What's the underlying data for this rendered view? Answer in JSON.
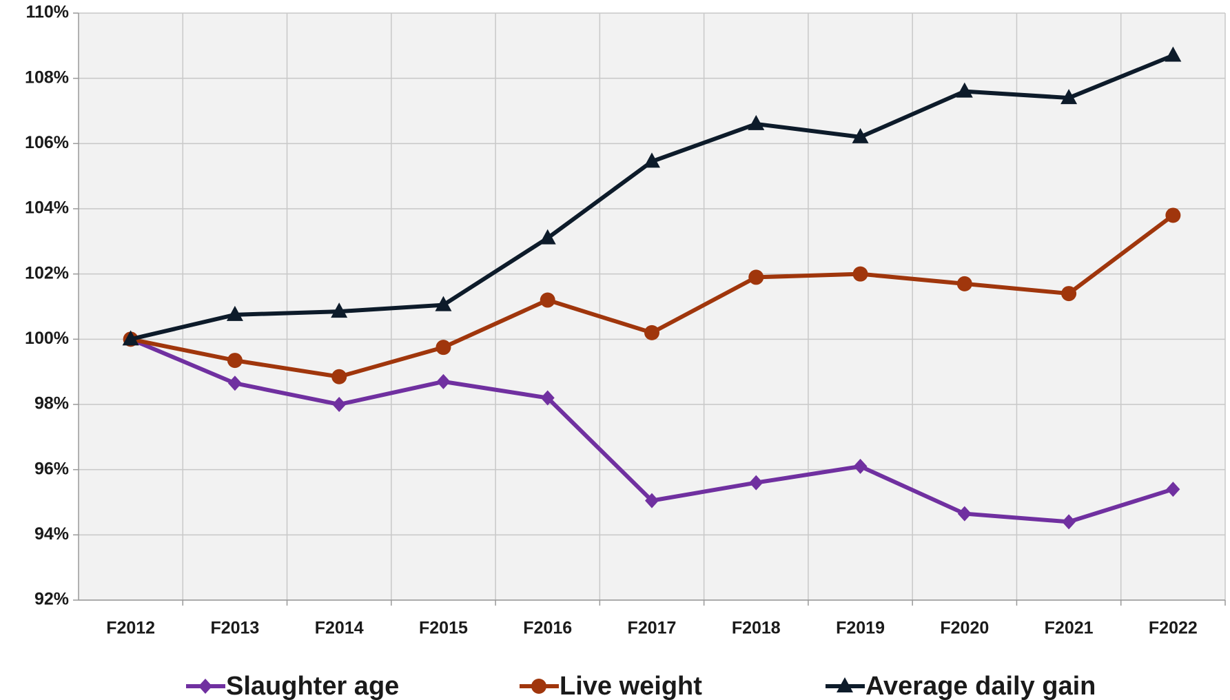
{
  "chart_data": {
    "type": "line",
    "categories": [
      "F2012",
      "F2013",
      "F2014",
      "F2015",
      "F2016",
      "F2017",
      "F2018",
      "F2019",
      "F2020",
      "F2021",
      "F2022"
    ],
    "series": [
      {
        "name": "Slaughter age",
        "color": "#7030a0",
        "marker": "diamond",
        "values": [
          100,
          98.65,
          98.0,
          98.7,
          98.2,
          95.05,
          95.6,
          96.1,
          94.65,
          94.4,
          95.4
        ]
      },
      {
        "name": "Live weight",
        "color": "#a0360c",
        "marker": "circle",
        "values": [
          100,
          99.35,
          98.85,
          99.75,
          101.2,
          100.2,
          101.9,
          102.0,
          101.7,
          101.4,
          103.8
        ]
      },
      {
        "name": "Average daily gain",
        "color": "#0d1b2a",
        "marker": "triangle",
        "values": [
          100,
          100.75,
          100.85,
          101.05,
          103.1,
          105.45,
          106.6,
          106.2,
          107.6,
          107.4,
          108.7
        ]
      }
    ],
    "ylim": [
      92,
      110
    ],
    "yticks": [
      {
        "value": 92,
        "label": "92%"
      },
      {
        "value": 94,
        "label": "94%"
      },
      {
        "value": 96,
        "label": "96%"
      },
      {
        "value": 98,
        "label": "98%"
      },
      {
        "value": 100,
        "label": "100%"
      },
      {
        "value": 102,
        "label": "102%"
      },
      {
        "value": 104,
        "label": "104%"
      },
      {
        "value": 106,
        "label": "106%"
      },
      {
        "value": 108,
        "label": "108%"
      },
      {
        "value": 110,
        "label": "110%"
      }
    ],
    "grid": true,
    "legend": "bottom"
  }
}
